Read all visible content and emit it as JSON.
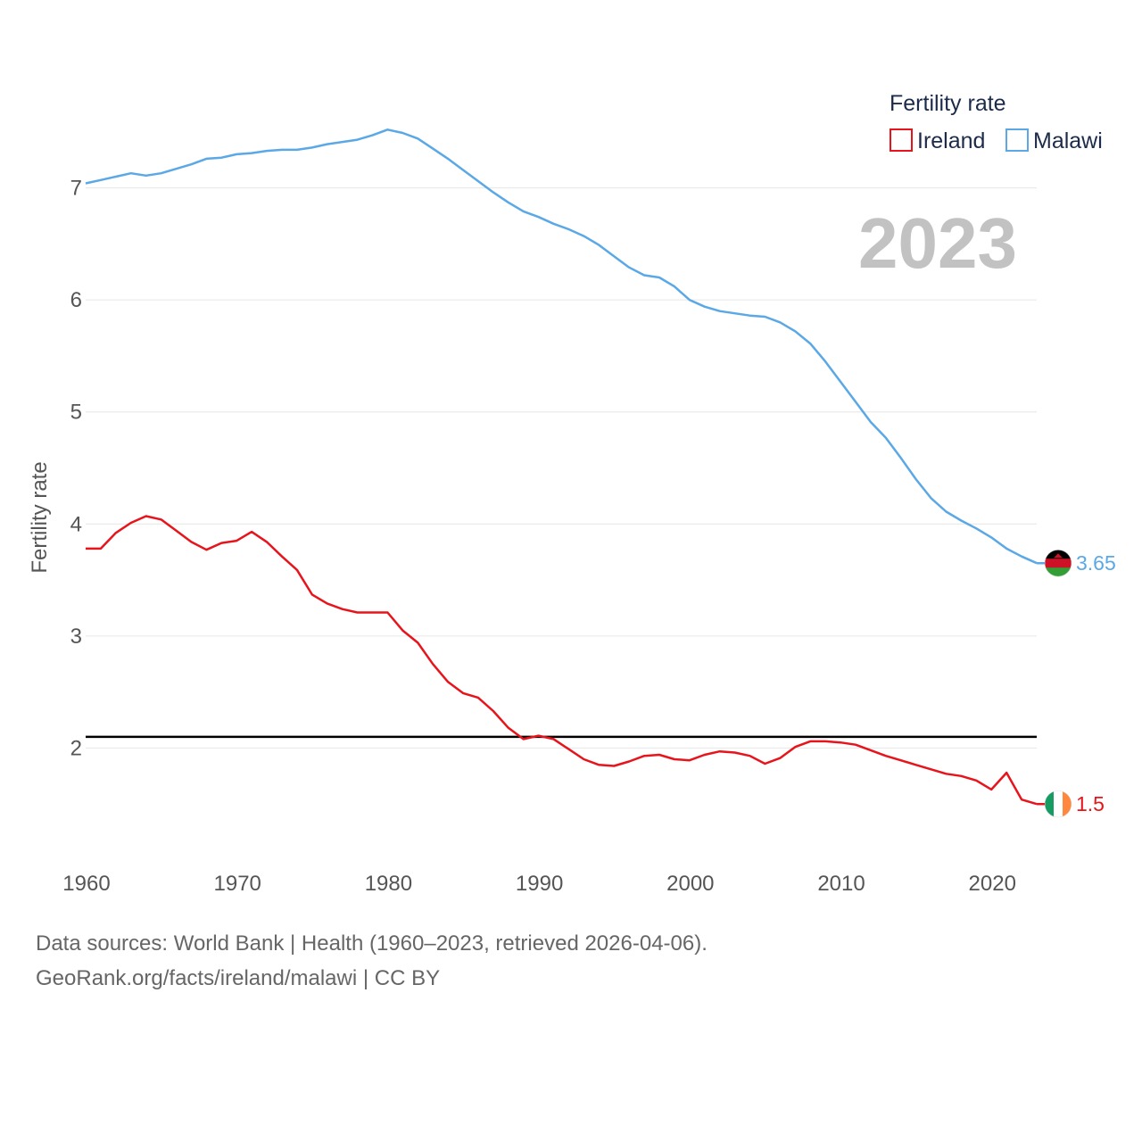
{
  "chart_data": {
    "type": "line",
    "title": "Fertility rate",
    "current_year_label": "2023",
    "ylabel": "Fertility rate",
    "xlabel": "",
    "xlim": [
      1960,
      2023
    ],
    "ylim": [
      1.0,
      8.0
    ],
    "x_ticks": [
      1960,
      1970,
      1980,
      1990,
      2000,
      2010,
      2020
    ],
    "y_ticks": [
      2,
      3,
      4,
      5,
      6,
      7
    ],
    "grid": true,
    "legend": {
      "title": "Fertility rate",
      "position": "top-right"
    },
    "reference_line": {
      "value": 2.1,
      "color": "#000000"
    },
    "x": [
      1960,
      1961,
      1962,
      1963,
      1964,
      1965,
      1966,
      1967,
      1968,
      1969,
      1970,
      1971,
      1972,
      1973,
      1974,
      1975,
      1976,
      1977,
      1978,
      1979,
      1980,
      1981,
      1982,
      1983,
      1984,
      1985,
      1986,
      1987,
      1988,
      1989,
      1990,
      1991,
      1992,
      1993,
      1994,
      1995,
      1996,
      1997,
      1998,
      1999,
      2000,
      2001,
      2002,
      2003,
      2004,
      2005,
      2006,
      2007,
      2008,
      2009,
      2010,
      2011,
      2012,
      2013,
      2014,
      2015,
      2016,
      2017,
      2018,
      2019,
      2020,
      2021,
      2022,
      2023
    ],
    "series": [
      {
        "name": "Ireland",
        "color": "#e8141c",
        "end_label": "1.5",
        "flag_colors": [
          "#169b62",
          "#ffffff",
          "#ff883e"
        ],
        "values": [
          3.78,
          3.78,
          3.92,
          4.01,
          4.07,
          4.04,
          3.94,
          3.84,
          3.77,
          3.83,
          3.85,
          3.93,
          3.84,
          3.71,
          3.59,
          3.37,
          3.29,
          3.24,
          3.21,
          3.21,
          3.21,
          3.05,
          2.94,
          2.75,
          2.59,
          2.49,
          2.45,
          2.33,
          2.18,
          2.08,
          2.11,
          2.08,
          1.99,
          1.9,
          1.85,
          1.84,
          1.88,
          1.93,
          1.94,
          1.9,
          1.89,
          1.94,
          1.97,
          1.96,
          1.93,
          1.86,
          1.91,
          2.01,
          2.06,
          2.06,
          2.05,
          2.03,
          1.98,
          1.93,
          1.89,
          1.85,
          1.81,
          1.77,
          1.75,
          1.71,
          1.63,
          1.78,
          1.54,
          1.5
        ]
      },
      {
        "name": "Malawi",
        "color": "#5ba8e6",
        "end_label": "3.65",
        "flag_colors": [
          "#000000",
          "#ce1126",
          "#339e35"
        ],
        "values": [
          7.04,
          7.07,
          7.1,
          7.13,
          7.11,
          7.13,
          7.17,
          7.21,
          7.26,
          7.27,
          7.3,
          7.31,
          7.33,
          7.34,
          7.34,
          7.36,
          7.39,
          7.41,
          7.43,
          7.47,
          7.52,
          7.49,
          7.44,
          7.35,
          7.26,
          7.16,
          7.06,
          6.96,
          6.87,
          6.79,
          6.74,
          6.68,
          6.63,
          6.57,
          6.49,
          6.39,
          6.29,
          6.22,
          6.2,
          6.12,
          6.0,
          5.94,
          5.9,
          5.88,
          5.86,
          5.85,
          5.8,
          5.72,
          5.61,
          5.45,
          5.27,
          5.09,
          4.91,
          4.77,
          4.59,
          4.4,
          4.23,
          4.11,
          4.03,
          3.96,
          3.88,
          3.78,
          3.71,
          3.65
        ]
      }
    ]
  },
  "footer": {
    "line1": "Data sources: World Bank | Health (1960–2023, retrieved 2026-04-06).",
    "line2": "GeoRank.org/facts/ireland/malawi | CC BY"
  }
}
